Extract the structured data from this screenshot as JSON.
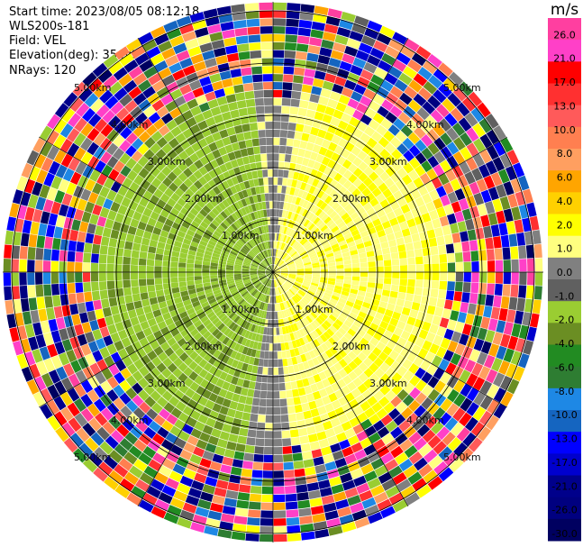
{
  "header": {
    "start_time": "Start time: 2023/08/05 08:12:18",
    "site": "WLS200s-181",
    "field": "Field: VEL",
    "elevation": "Elevation(deg): 35.30",
    "nrays": "NRays: 120"
  },
  "colorbar": {
    "unit": "m/s",
    "ticks": [
      "26.0",
      "21.0",
      "17.0",
      "13.0",
      "10.0",
      "8.0",
      "6.0",
      "4.0",
      "2.0",
      "1.0",
      "0.0",
      "-1.0",
      "-2.0",
      "-4.0",
      "-6.0",
      "-8.0",
      "-10.0",
      "-13.0",
      "-17.0",
      "-21.0",
      "-26.0",
      "-30.0"
    ],
    "colors": [
      "#ff3fa0",
      "#ff40c8",
      "#ff0000",
      "#ff3030",
      "#ff5a5a",
      "#ff7f50",
      "#ff9f60",
      "#ffa500",
      "#ffd000",
      "#ffff00",
      "#ffff80",
      "#808080",
      "#606060",
      "#9acd32",
      "#6b8e23",
      "#228b22",
      "#2e7d32",
      "#1e88e5",
      "#1565c0",
      "#0000ff",
      "#0000cd",
      "#00008b",
      "#000080",
      "#000060"
    ]
  },
  "range_rings": [
    "1.00km",
    "2.00km",
    "3.00km",
    "4.00km",
    "5.00km"
  ],
  "chart_data": {
    "type": "heatmap",
    "title": "",
    "field": "VEL",
    "unit": "m/s",
    "value_range": [
      -30.0,
      26.0
    ],
    "nrays": 120,
    "range_rings_km": [
      1,
      2,
      3,
      4,
      5
    ],
    "pattern": {
      "near_range_east_sector_ms": 2.0,
      "near_range_west_sector_ms": -6.0,
      "transition_band_ms": 0.0,
      "far_range": "noisy (random velocities)"
    }
  }
}
